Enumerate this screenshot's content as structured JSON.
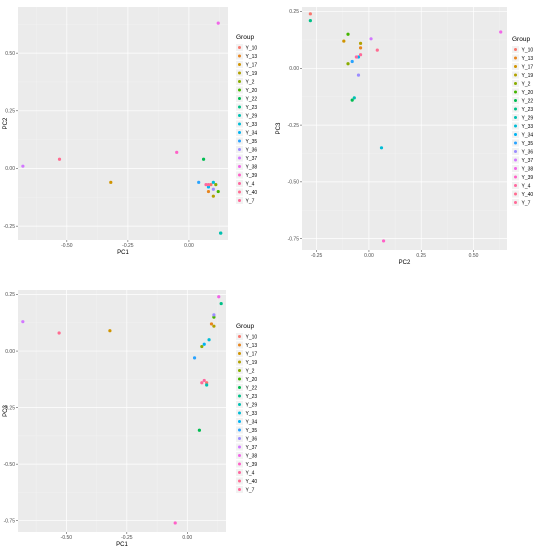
{
  "legend_title": "Group",
  "groups": [
    {
      "label": "Y_10",
      "color": "#F8766D"
    },
    {
      "label": "Y_13",
      "color": "#E7851E"
    },
    {
      "label": "Y_17",
      "color": "#D09400"
    },
    {
      "label": "Y_19",
      "color": "#B2A100"
    },
    {
      "label": "Y_2",
      "color": "#89AC00"
    },
    {
      "label": "Y_20",
      "color": "#45B500"
    },
    {
      "label": "Y_22",
      "color": "#00BC51"
    },
    {
      "label": "Y_23",
      "color": "#00C087"
    },
    {
      "label": "Y_29",
      "color": "#00C0B2"
    },
    {
      "label": "Y_33",
      "color": "#00BCD6"
    },
    {
      "label": "Y_34",
      "color": "#00B3F2"
    },
    {
      "label": "Y_35",
      "color": "#29A3FF"
    },
    {
      "label": "Y_36",
      "color": "#9C8DFF"
    },
    {
      "label": "Y_37",
      "color": "#D277FF"
    },
    {
      "label": "Y_38",
      "color": "#F166E8"
    },
    {
      "label": "Y_39",
      "color": "#FF61C7"
    },
    {
      "label": "Y_4",
      "color": "#FF689F"
    },
    {
      "label": "Y_40",
      "color": "#FF6C91"
    },
    {
      "label": "Y_7",
      "color": "#FF6A98"
    }
  ],
  "chart_data": [
    {
      "type": "scatter",
      "xlabel": "PC1",
      "ylabel": "PC2",
      "xlim": [
        -0.7,
        0.16
      ],
      "ylim": [
        -0.31,
        0.7
      ],
      "xticks": [
        -0.5,
        -0.25,
        0.0
      ],
      "xtick_labels": [
        "-0.50",
        "-0.25",
        "0.00"
      ],
      "yticks": [
        -0.25,
        0.0,
        0.25,
        0.5
      ],
      "ytick_labels": [
        "-0.25",
        "0.00",
        "0.25",
        "0.50"
      ],
      "legend_position": "right",
      "points": [
        {
          "group": "Y_10",
          "x": 0.09,
          "y": -0.07
        },
        {
          "group": "Y_13",
          "x": 0.08,
          "y": -0.1
        },
        {
          "group": "Y_17",
          "x": -0.32,
          "y": -0.06
        },
        {
          "group": "Y_19",
          "x": 0.1,
          "y": -0.12
        },
        {
          "group": "Y_2",
          "x": 0.11,
          "y": -0.07
        },
        {
          "group": "Y_20",
          "x": 0.12,
          "y": -0.1
        },
        {
          "group": "Y_22",
          "x": 0.06,
          "y": 0.04
        },
        {
          "group": "Y_23",
          "x": 0.13,
          "y": -0.28
        },
        {
          "group": "Y_29",
          "x": 0.13,
          "y": -0.28
        },
        {
          "group": "Y_33",
          "x": 0.1,
          "y": -0.06
        },
        {
          "group": "Y_34",
          "x": 0.08,
          "y": -0.08
        },
        {
          "group": "Y_35",
          "x": 0.04,
          "y": -0.06
        },
        {
          "group": "Y_36",
          "x": 0.1,
          "y": -0.09
        },
        {
          "group": "Y_37",
          "x": -0.68,
          "y": 0.01
        },
        {
          "group": "Y_38",
          "x": 0.12,
          "y": 0.63
        },
        {
          "group": "Y_39",
          "x": -0.05,
          "y": 0.07
        },
        {
          "group": "Y_4",
          "x": 0.07,
          "y": -0.07
        },
        {
          "group": "Y_40",
          "x": -0.53,
          "y": 0.04
        },
        {
          "group": "Y_7",
          "x": 0.08,
          "y": -0.07
        }
      ]
    },
    {
      "type": "scatter",
      "xlabel": "PC2",
      "ylabel": "PC3",
      "xlim": [
        -0.32,
        0.66
      ],
      "ylim": [
        -0.8,
        0.27
      ],
      "xticks": [
        -0.25,
        0.0,
        0.25,
        0.5
      ],
      "xtick_labels": [
        "-0.25",
        "0.00",
        "0.25",
        "0.50"
      ],
      "yticks": [
        -0.75,
        -0.5,
        -0.25,
        0.0,
        0.25
      ],
      "ytick_labels": [
        "-0.75",
        "-0.50",
        "-0.25",
        "0.00",
        "0.25"
      ],
      "legend_position": "right",
      "points": [
        {
          "group": "Y_10",
          "x": -0.28,
          "y": 0.24
        },
        {
          "group": "Y_13",
          "x": -0.04,
          "y": 0.09
        },
        {
          "group": "Y_17",
          "x": -0.12,
          "y": 0.12
        },
        {
          "group": "Y_19",
          "x": -0.04,
          "y": 0.11
        },
        {
          "group": "Y_2",
          "x": -0.1,
          "y": 0.02
        },
        {
          "group": "Y_20",
          "x": -0.1,
          "y": 0.15
        },
        {
          "group": "Y_22",
          "x": -0.08,
          "y": -0.14
        },
        {
          "group": "Y_23",
          "x": -0.28,
          "y": 0.21
        },
        {
          "group": "Y_29",
          "x": -0.07,
          "y": -0.13
        },
        {
          "group": "Y_33",
          "x": 0.06,
          "y": -0.35
        },
        {
          "group": "Y_34",
          "x": -0.05,
          "y": 0.05
        },
        {
          "group": "Y_35",
          "x": -0.08,
          "y": 0.03
        },
        {
          "group": "Y_36",
          "x": -0.05,
          "y": -0.03
        },
        {
          "group": "Y_37",
          "x": 0.01,
          "y": 0.13
        },
        {
          "group": "Y_38",
          "x": 0.63,
          "y": 0.16
        },
        {
          "group": "Y_39",
          "x": 0.07,
          "y": -0.76
        },
        {
          "group": "Y_4",
          "x": -0.06,
          "y": 0.05
        },
        {
          "group": "Y_40",
          "x": 0.04,
          "y": 0.08
        },
        {
          "group": "Y_7",
          "x": -0.04,
          "y": 0.06
        }
      ]
    },
    {
      "type": "scatter",
      "xlabel": "PC1",
      "ylabel": "PC3",
      "xlim": [
        -0.7,
        0.16
      ],
      "ylim": [
        -0.8,
        0.27
      ],
      "xticks": [
        -0.5,
        -0.25,
        0.0
      ],
      "xtick_labels": [
        "-0.50",
        "-0.25",
        "0.00"
      ],
      "yticks": [
        -0.75,
        -0.5,
        -0.25,
        0.0,
        0.25
      ],
      "ytick_labels": [
        "-0.75",
        "-0.50",
        "-0.25",
        "0.00",
        "0.25"
      ],
      "legend_position": "right",
      "points": [
        {
          "group": "Y_10",
          "x": 0.08,
          "y": -0.14
        },
        {
          "group": "Y_13",
          "x": 0.1,
          "y": 0.12
        },
        {
          "group": "Y_17",
          "x": -0.32,
          "y": 0.09
        },
        {
          "group": "Y_19",
          "x": 0.11,
          "y": 0.11
        },
        {
          "group": "Y_2",
          "x": 0.06,
          "y": 0.02
        },
        {
          "group": "Y_20",
          "x": 0.11,
          "y": 0.15
        },
        {
          "group": "Y_22",
          "x": 0.05,
          "y": -0.35
        },
        {
          "group": "Y_23",
          "x": 0.14,
          "y": 0.21
        },
        {
          "group": "Y_29",
          "x": 0.08,
          "y": -0.15
        },
        {
          "group": "Y_33",
          "x": 0.09,
          "y": 0.05
        },
        {
          "group": "Y_34",
          "x": 0.07,
          "y": 0.03
        },
        {
          "group": "Y_35",
          "x": 0.03,
          "y": -0.03
        },
        {
          "group": "Y_36",
          "x": 0.11,
          "y": 0.16
        },
        {
          "group": "Y_37",
          "x": -0.68,
          "y": 0.13
        },
        {
          "group": "Y_38",
          "x": 0.13,
          "y": 0.24
        },
        {
          "group": "Y_39",
          "x": -0.05,
          "y": -0.76
        },
        {
          "group": "Y_4",
          "x": 0.07,
          "y": -0.13
        },
        {
          "group": "Y_40",
          "x": -0.53,
          "y": 0.08
        },
        {
          "group": "Y_7",
          "x": 0.06,
          "y": -0.14
        }
      ]
    }
  ]
}
